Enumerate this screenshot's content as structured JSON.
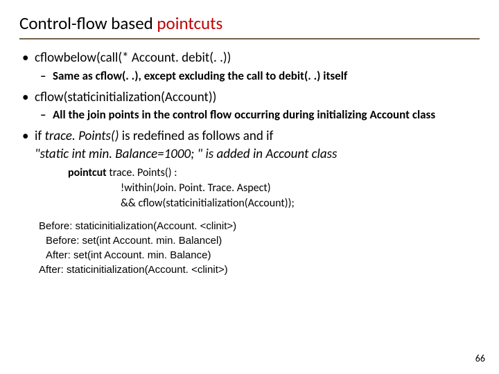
{
  "title_part1": "Control-flow based ",
  "title_part2": "pointcuts",
  "b1_text": "cflowbelow(call(* Account. debit(. .))",
  "b1_sub": "Same as cflow(. .), except excluding the call to debit(. .) itself",
  "b2_text": "cflow(staticinitialization(Account))",
  "b2_sub": "All the join points in the control flow occurring during initializing Account class",
  "b3_line1_a": "if ",
  "b3_line1_b": "trace. Points()",
  "b3_line1_c": " is redefined as follows and if",
  "b3_line2": "\"static int min. Balance=1000; \" is added in Account class",
  "code_l1_a": "pointcut",
  "code_l1_b": " trace. Points() :",
  "code_l2": "!within(Join. Point. Trace. Aspect)",
  "code_l3": "&& cflow(staticinitialization(Account));",
  "out1": "Before: staticinitialization(Account. <clinit>)",
  "out2": "Before: set(int Account. min. Balancel)",
  "out3": "After: set(int Account. min. Balance)",
  "out4": "After: staticinitialization(Account. <clinit>)",
  "pagenum": "66",
  "colors": {
    "title_underline": "#736049",
    "red": "#c00000",
    "text": "#000000",
    "bg": "#ffffff"
  }
}
